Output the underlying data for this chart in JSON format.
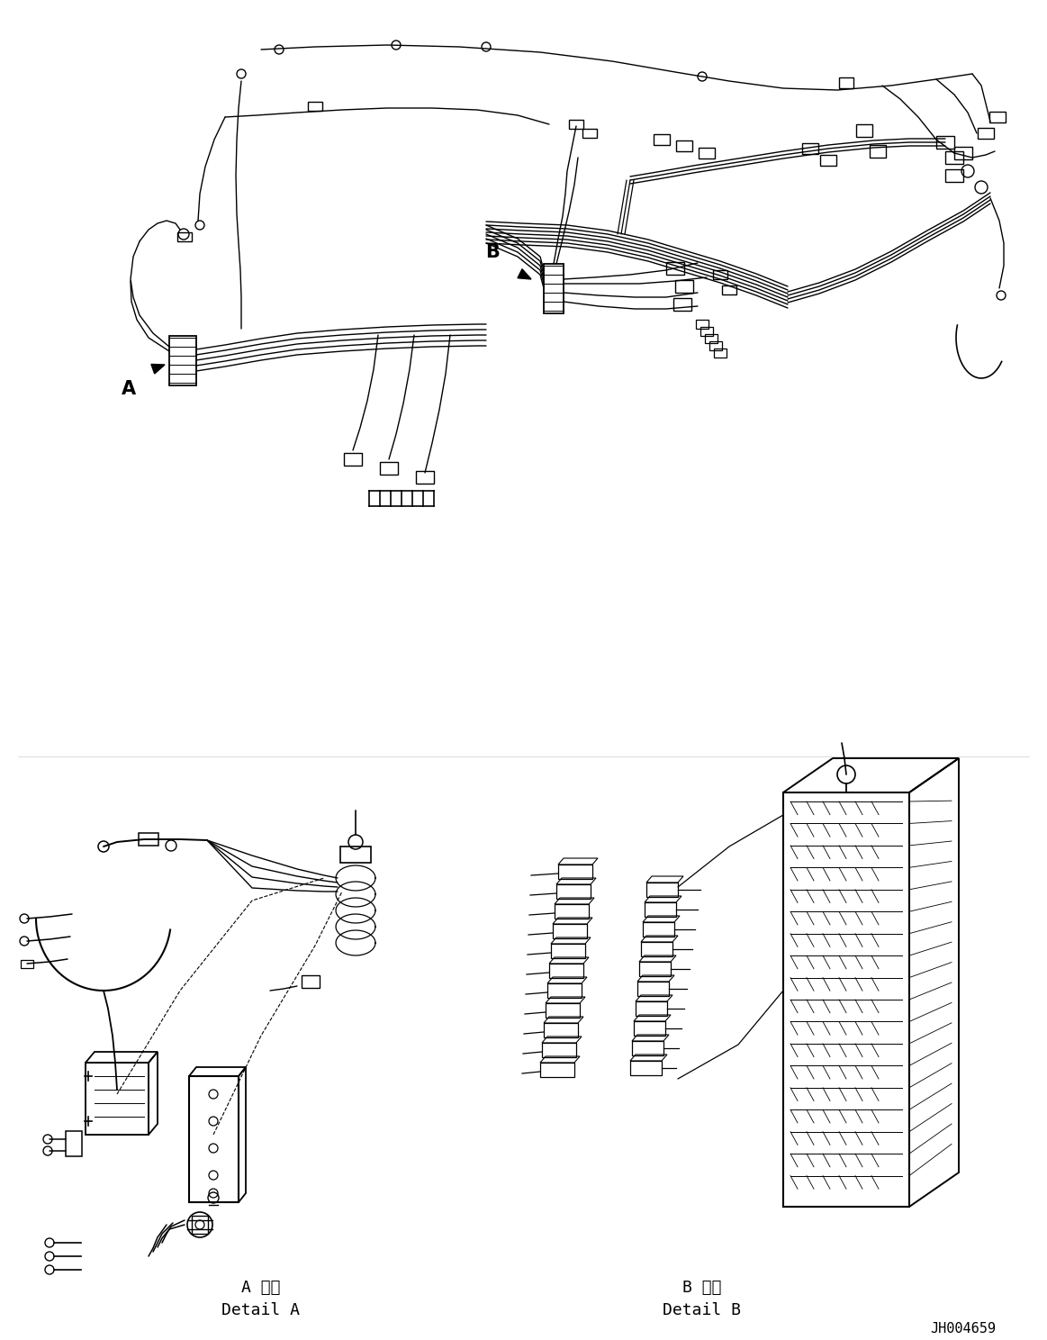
{
  "background_color": "#ffffff",
  "line_color": "#000000",
  "label_A": "A",
  "label_B": "B",
  "detail_A_jp": "A 詳細",
  "detail_A_en": "Detail A",
  "detail_B_jp": "B 詳細",
  "detail_B_en": "Detail B",
  "ref_number": "JH004659",
  "fig_width": 11.63,
  "fig_height": 14.88,
  "dpi": 100
}
